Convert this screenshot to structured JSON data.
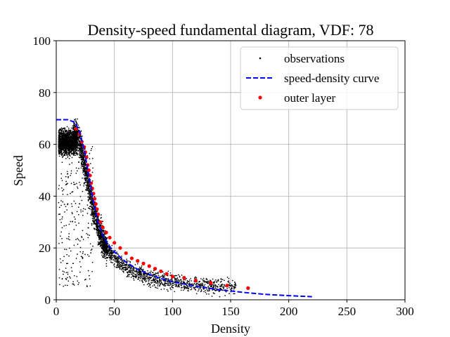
{
  "chart_data": {
    "type": "scatter",
    "title": "Density-speed fundamental diagram, VDF: 78",
    "xlabel": "Density",
    "ylabel": "Speed",
    "xlim": [
      0,
      300
    ],
    "ylim": [
      0,
      100
    ],
    "x_ticks": [
      "0",
      "50",
      "100",
      "150",
      "200",
      "250",
      "300"
    ],
    "y_ticks": [
      "0",
      "20",
      "40",
      "60",
      "80",
      "100"
    ],
    "x_tick_values": [
      0,
      50,
      100,
      150,
      200,
      250,
      300
    ],
    "y_tick_values": [
      0,
      20,
      40,
      60,
      80,
      100
    ],
    "grid": true,
    "legend_position": "top-right",
    "legend": [
      {
        "label": "observations",
        "marker": "point",
        "color": "#000000"
      },
      {
        "label": "speed-density curve",
        "marker": "dashed-line",
        "color": "#0000ff"
      },
      {
        "label": "outer layer",
        "marker": "dot",
        "color": "#ff0000"
      }
    ],
    "series": [
      {
        "name": "speed-density curve",
        "style": "dashed",
        "color": "#0000ff",
        "x": [
          0,
          10,
          16,
          20,
          24,
          28,
          32,
          36,
          40,
          45,
          50,
          60,
          70,
          80,
          90,
          100,
          120,
          140,
          160,
          180,
          200,
          220
        ],
        "y": [
          69.5,
          69.5,
          68.5,
          65,
          58,
          48,
          38,
          30,
          25,
          21,
          18.5,
          14.5,
          11.8,
          9.8,
          8.2,
          7.0,
          5.2,
          3.9,
          2.9,
          2.1,
          1.6,
          1.2
        ]
      },
      {
        "name": "outer layer",
        "style": "markers",
        "color": "#ff0000",
        "x": [
          17,
          20,
          22,
          24,
          25,
          26,
          27,
          28,
          29,
          30,
          31,
          32,
          33,
          34,
          35,
          36,
          38,
          40,
          43,
          46,
          50,
          55,
          60,
          65,
          70,
          75,
          80,
          85,
          90,
          95,
          100,
          110,
          120,
          133,
          147,
          165
        ],
        "y": [
          66,
          64,
          61,
          59,
          57,
          55,
          52,
          50,
          48,
          45,
          43,
          41,
          39,
          37,
          35,
          33,
          30,
          28,
          26,
          24,
          22,
          20,
          18,
          16,
          15,
          14,
          13,
          12,
          11,
          10,
          9,
          8.5,
          7.5,
          6.5,
          5.5,
          4.5
        ]
      },
      {
        "name": "observations",
        "style": "points",
        "color": "#000000",
        "x": [],
        "y": []
      }
    ]
  }
}
